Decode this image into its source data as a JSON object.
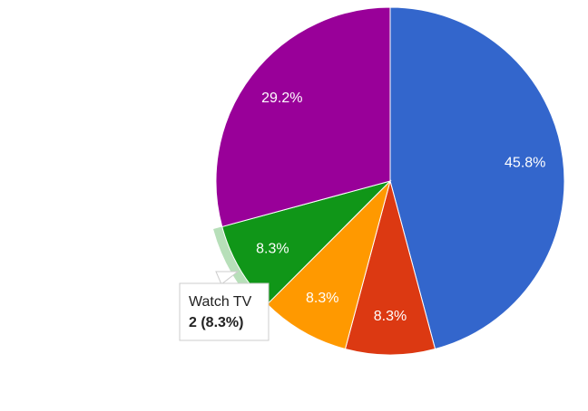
{
  "chart_data": {
    "type": "pie",
    "categories": [
      null,
      null,
      null,
      "Watch TV",
      null
    ],
    "values": [
      45.8,
      8.3,
      8.3,
      8.3,
      29.2
    ],
    "value_labels": [
      "45.8%",
      "8.3%",
      "8.3%",
      "8.3%",
      "29.2%"
    ],
    "colors": [
      "#3366cc",
      "#dc3912",
      "#ff9900",
      "#109618",
      "#990099"
    ],
    "highlighted": 3,
    "tooltip": {
      "title": "Watch TV",
      "value_label": "2 (8.3%)"
    }
  }
}
